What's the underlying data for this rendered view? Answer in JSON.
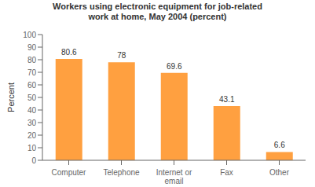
{
  "chart_data": {
    "type": "bar",
    "title": "Workers using electronic equipment for job-related\nwork at home, May 2004 (percent)",
    "categories": [
      "Computer",
      "Telephone",
      "Internet or\nemail",
      "Fax",
      "Other"
    ],
    "values": [
      80.6,
      78.0,
      69.6,
      43.1,
      6.6
    ],
    "color": "#FFA040",
    "ylabel": "Percent",
    "ylim": [
      0,
      100
    ],
    "yticks": [
      0,
      10,
      20,
      30,
      40,
      50,
      60,
      70,
      80,
      90,
      100
    ],
    "grid": false,
    "data_labels": true
  }
}
